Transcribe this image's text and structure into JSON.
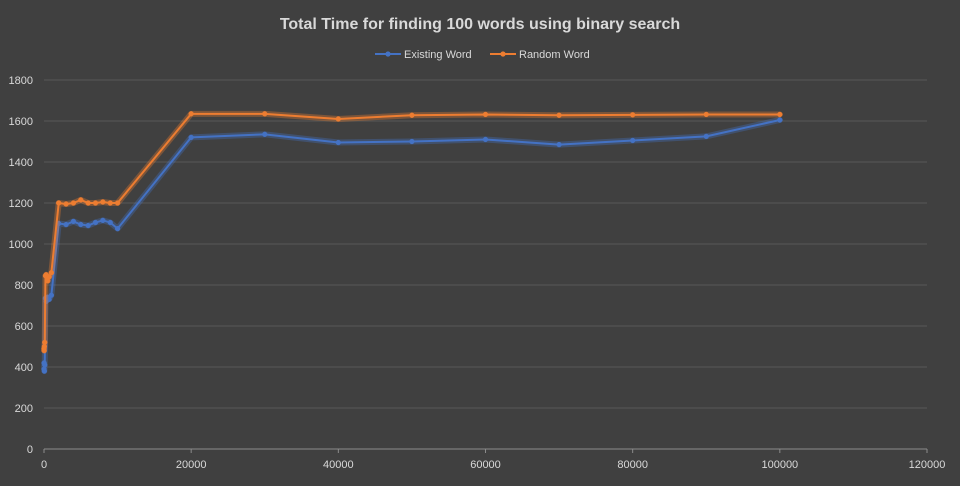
{
  "chart_data": {
    "type": "line",
    "title": "Total Time for finding 100 words using binary search",
    "xlabel": "",
    "ylabel": "",
    "xlim": [
      0,
      120000
    ],
    "ylim": [
      0,
      1800
    ],
    "x_ticks": [
      0,
      20000,
      40000,
      60000,
      80000,
      100000,
      120000
    ],
    "y_ticks": [
      0,
      200,
      400,
      600,
      800,
      1000,
      1200,
      1400,
      1600,
      1800
    ],
    "grid": true,
    "legend_position": "top",
    "series": [
      {
        "name": "Existing Word",
        "color": "#4472c4",
        "x": [
          10,
          20,
          50,
          100,
          200,
          300,
          500,
          700,
          1000,
          2000,
          3000,
          4000,
          5000,
          6000,
          7000,
          8000,
          9000,
          10000,
          20000,
          30000,
          40000,
          50000,
          60000,
          70000,
          80000,
          90000,
          100000
        ],
        "values": [
          390,
          420,
          380,
          410,
          735,
          720,
          740,
          730,
          750,
          1100,
          1095,
          1110,
          1095,
          1090,
          1105,
          1115,
          1105,
          1075,
          1520,
          1535,
          1495,
          1500,
          1510,
          1485,
          1505,
          1525,
          1605
        ]
      },
      {
        "name": "Random Word",
        "color": "#ed7d31",
        "x": [
          10,
          20,
          50,
          100,
          200,
          300,
          500,
          700,
          1000,
          2000,
          3000,
          4000,
          5000,
          6000,
          7000,
          8000,
          9000,
          10000,
          20000,
          30000,
          40000,
          50000,
          60000,
          70000,
          80000,
          90000,
          100000
        ],
        "values": [
          490,
          480,
          500,
          520,
          845,
          850,
          820,
          840,
          860,
          1200,
          1195,
          1200,
          1215,
          1200,
          1200,
          1205,
          1200,
          1200,
          1635,
          1635,
          1610,
          1628,
          1632,
          1628,
          1630,
          1632,
          1632
        ]
      }
    ]
  }
}
